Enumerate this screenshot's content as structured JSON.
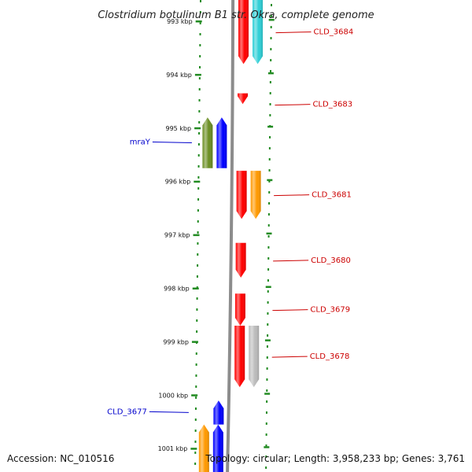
{
  "title": "Clostridium botulinum B1 str. Okra, complete genome",
  "footer": {
    "accession": "Accession: NC_010516",
    "topology": "Topology: circular; Length: 3,958,233 bp; Genes: 3,761"
  },
  "colors": {
    "forward_gene": "#ff0000",
    "reverse_gene": "#0000ff",
    "olive_gene": "#6b8e23",
    "cyan_gene": "#2ecfd6",
    "orange_gene": "#ff9900",
    "gray_gene": "#bbbbbb",
    "backbone": "#8c8c8c",
    "tick": "#228b22",
    "label_forward": "#cc0000",
    "label_reverse": "#0000cc"
  },
  "ticks": [
    {
      "kbp": 993,
      "label": "993 kbp"
    },
    {
      "kbp": 994,
      "label": "994 kbp"
    },
    {
      "kbp": 995,
      "label": "995 kbp"
    },
    {
      "kbp": 996,
      "label": "996 kbp"
    },
    {
      "kbp": 997,
      "label": "997 kbp"
    },
    {
      "kbp": 998,
      "label": "998 kbp"
    },
    {
      "kbp": 999,
      "label": "999 kbp"
    },
    {
      "kbp": 1000,
      "label": "1000 kbp"
    },
    {
      "kbp": 1001,
      "label": "1001 kbp"
    }
  ],
  "genes": [
    {
      "track": "forward-1",
      "start_kbp": 992.6,
      "end_kbp": 993.8,
      "strand": "-",
      "color": "#ff0000",
      "label": "CLD_3684"
    },
    {
      "track": "forward-2",
      "start_kbp": 992.6,
      "end_kbp": 993.8,
      "strand": "-",
      "color": "#2ecfd6",
      "label": ""
    },
    {
      "track": "forward-1",
      "start_kbp": 994.35,
      "end_kbp": 994.55,
      "strand": "-",
      "color": "#ff0000",
      "label": "CLD_3683"
    },
    {
      "track": "reverse-2",
      "start_kbp": 994.8,
      "end_kbp": 995.75,
      "strand": "+",
      "color": "#6b8e23",
      "label": ""
    },
    {
      "track": "reverse-1",
      "start_kbp": 994.8,
      "end_kbp": 995.75,
      "strand": "+",
      "color": "#0000ff",
      "label": "mraY"
    },
    {
      "track": "forward-1",
      "start_kbp": 995.8,
      "end_kbp": 996.7,
      "strand": "-",
      "color": "#ff0000",
      "label": "CLD_3681"
    },
    {
      "track": "forward-2",
      "start_kbp": 995.8,
      "end_kbp": 996.7,
      "strand": "-",
      "color": "#ff9900",
      "label": ""
    },
    {
      "track": "forward-1",
      "start_kbp": 997.15,
      "end_kbp": 997.8,
      "strand": "-",
      "color": "#ff0000",
      "label": "CLD_3680"
    },
    {
      "track": "forward-1",
      "start_kbp": 998.1,
      "end_kbp": 998.7,
      "strand": "-",
      "color": "#ff0000",
      "label": "CLD_3679"
    },
    {
      "track": "forward-1",
      "start_kbp": 998.7,
      "end_kbp": 999.85,
      "strand": "-",
      "color": "#ff0000",
      "label": ""
    },
    {
      "track": "forward-2",
      "start_kbp": 998.7,
      "end_kbp": 999.85,
      "strand": "-",
      "color": "#bbbbbb",
      "label": "CLD_3678"
    },
    {
      "track": "reverse-1",
      "start_kbp": 1000.1,
      "end_kbp": 1000.55,
      "strand": "+",
      "color": "#0000ff",
      "label": "CLD_3677"
    },
    {
      "track": "reverse-1",
      "start_kbp": 1000.55,
      "end_kbp": 1001.5,
      "strand": "+",
      "color": "#0000ff",
      "label": ""
    },
    {
      "track": "reverse-2",
      "start_kbp": 1000.55,
      "end_kbp": 1001.5,
      "strand": "+",
      "color": "#ff9900",
      "label": ""
    }
  ]
}
